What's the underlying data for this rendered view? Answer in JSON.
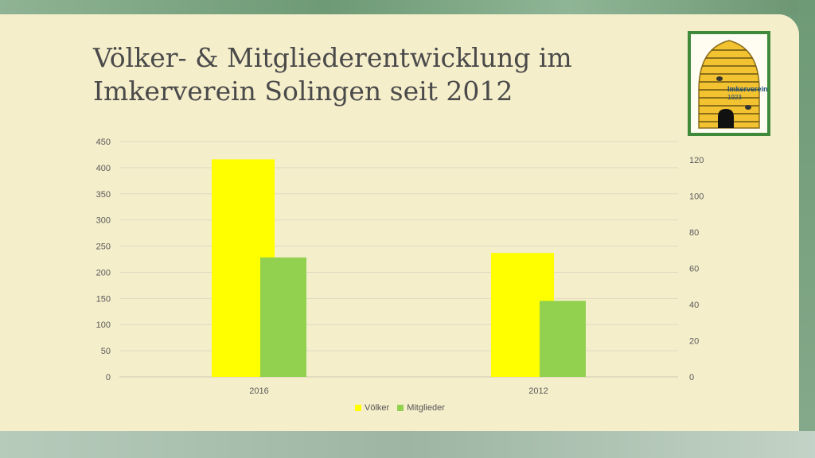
{
  "slide": {
    "title": "Völker- & Mitgliederentwicklung im Imkerverein Solingen seit 2012"
  },
  "logo": {
    "icon": "beehive-icon",
    "text_line1": "Imkerverein",
    "text_line2": "1923"
  },
  "colors": {
    "background": "#f5eecb",
    "voelker": "#ffff00",
    "mitglieder": "#92d050",
    "grid": "#dedac0",
    "axis_text": "#595959"
  },
  "chart_data": {
    "type": "bar",
    "categories": [
      "2016",
      "2012"
    ],
    "series": [
      {
        "name": "Völker",
        "values": [
          416,
          237
        ],
        "axis": "left"
      },
      {
        "name": "Mitglieder",
        "values": [
          66,
          42
        ],
        "axis": "right"
      }
    ],
    "y_left": {
      "min": 0,
      "max": 450,
      "ticks": [
        0,
        50,
        100,
        150,
        200,
        250,
        300,
        350,
        400,
        450
      ]
    },
    "y_right": {
      "min": 0,
      "max": 130,
      "ticks": [
        0,
        20,
        40,
        60,
        80,
        100,
        120
      ]
    },
    "grid": true,
    "legend": "bottom"
  }
}
